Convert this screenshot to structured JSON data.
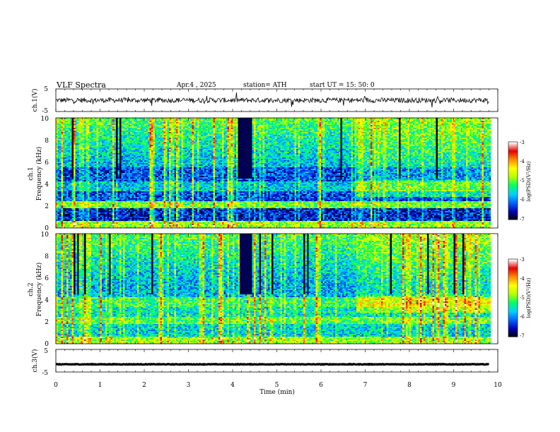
{
  "header": {
    "title": "VLF  Spectra",
    "date": "Apr.4  , 2025",
    "station": "station= ATH",
    "start": "start  UT  =   15: 50: 0"
  },
  "chart_data": [
    {
      "type": "line",
      "name": "ch1-waveform",
      "ylabel": "ch.1(V)",
      "xlim": [
        0,
        10
      ],
      "ylim": [
        -5,
        5
      ],
      "yticks": [
        "5",
        "-5"
      ],
      "trace_mean": 0,
      "trace_span_min": [
        0,
        9.8
      ]
    },
    {
      "type": "heatmap",
      "name": "ch1-spectrogram",
      "ylabel": "ch.1\nFrequency  (kHz)",
      "ylabel_lines": [
        "ch.1",
        "Frequency  (kHz)"
      ],
      "xlim": [
        0,
        10
      ],
      "ylim": [
        0,
        10
      ],
      "yticks": [
        "0",
        "2",
        "4",
        "6",
        "8",
        "10"
      ],
      "colorbar": {
        "label": "log(PSD)(V²/Hz)",
        "range": [
          -7,
          -3
        ],
        "ticks": [
          "-3",
          "-4",
          "-5",
          "-6",
          "-7"
        ]
      }
    },
    {
      "type": "heatmap",
      "name": "ch2-spectrogram",
      "ylabel": "ch.2\nFrequency  (kHz)",
      "ylabel_lines": [
        "ch.2",
        "Frequency  (kHz)"
      ],
      "xlim": [
        0,
        10
      ],
      "ylim": [
        0,
        10
      ],
      "yticks": [
        "0",
        "2",
        "4",
        "6",
        "8",
        "10"
      ],
      "colorbar": {
        "label": "log(PSD)(V²/Hz)",
        "range": [
          -7,
          -3
        ],
        "ticks": [
          "-3",
          "-4",
          "-5",
          "-6",
          "-7"
        ]
      }
    },
    {
      "type": "line",
      "name": "ch3-waveform",
      "ylabel": "ch.3(V)",
      "xlim": [
        0,
        10
      ],
      "ylim": [
        -5,
        5
      ],
      "yticks": [
        "5",
        "-5"
      ],
      "trace_mean": -1.6,
      "trace_span_min": [
        0,
        9.8
      ]
    }
  ],
  "xaxis": {
    "label": "Time  (min)",
    "ticks": [
      "0",
      "1",
      "2",
      "3",
      "4",
      "5",
      "6",
      "7",
      "8",
      "9",
      "10"
    ]
  },
  "colors": {
    "trace": "#000000",
    "colormap": [
      "#000000",
      "#0000b4",
      "#0064ff",
      "#00d0ff",
      "#00ff64",
      "#b4ff00",
      "#ffff00",
      "#ff8c00",
      "#e60000",
      "#ffffff"
    ]
  }
}
